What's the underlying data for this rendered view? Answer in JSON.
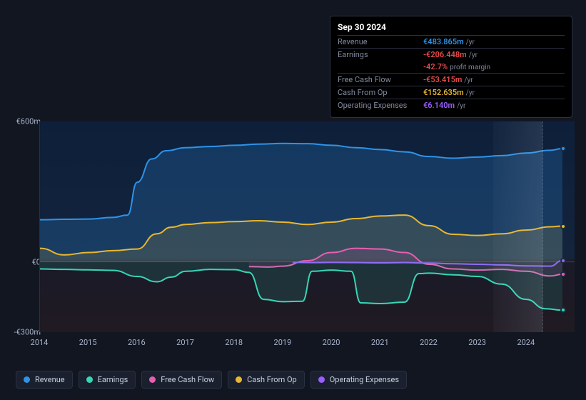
{
  "tooltip": {
    "date": "Sep 30 2024",
    "rows": [
      {
        "label": "Revenue",
        "value": "€483.865m",
        "unit": "/yr",
        "color": "#2e93e8"
      },
      {
        "label": "Earnings",
        "value": "-€206.448m",
        "unit": "/yr",
        "color": "#e84a4a",
        "sub": {
          "value": "-42.7%",
          "unit": "profit margin",
          "color": "#e84a4a"
        }
      },
      {
        "label": "Free Cash Flow",
        "value": "-€53.415m",
        "unit": "/yr",
        "color": "#e84a4a"
      },
      {
        "label": "Cash From Op",
        "value": "€152.635m",
        "unit": "/yr",
        "color": "#e8b732"
      },
      {
        "label": "Operating Expenses",
        "value": "€6.140m",
        "unit": "/yr",
        "color": "#9a5eff"
      }
    ]
  },
  "chart": {
    "background_color": "#111621",
    "y_axis": {
      "min": -300,
      "max": 600,
      "ticks": [
        {
          "v": 600,
          "label": "€600m"
        },
        {
          "v": 0,
          "label": "€0"
        },
        {
          "v": -300,
          "label": "-€300m"
        }
      ]
    },
    "x_axis": {
      "min": 2014,
      "max": 2025,
      "ticks": [
        2014,
        2015,
        2016,
        2017,
        2018,
        2019,
        2020,
        2021,
        2022,
        2023,
        2024
      ]
    },
    "series": [
      {
        "name": "Revenue",
        "color": "#2e93e8",
        "fill": "rgba(46,147,232,0.22)",
        "points": [
          [
            2014,
            180
          ],
          [
            2014.5,
            182
          ],
          [
            2015,
            183
          ],
          [
            2015.5,
            190
          ],
          [
            2015.8,
            200
          ],
          [
            2016,
            340
          ],
          [
            2016.3,
            440
          ],
          [
            2016.6,
            475
          ],
          [
            2017,
            488
          ],
          [
            2017.5,
            493
          ],
          [
            2018,
            498
          ],
          [
            2018.5,
            503
          ],
          [
            2019,
            506
          ],
          [
            2019.5,
            505
          ],
          [
            2020,
            498
          ],
          [
            2020.5,
            488
          ],
          [
            2021,
            480
          ],
          [
            2021.5,
            470
          ],
          [
            2022,
            450
          ],
          [
            2022.5,
            443
          ],
          [
            2023,
            448
          ],
          [
            2023.5,
            454
          ],
          [
            2024,
            465
          ],
          [
            2024.5,
            477
          ],
          [
            2024.75,
            484
          ]
        ],
        "marker_at": [
          2024.75,
          484
        ]
      },
      {
        "name": "Cash From Op",
        "color": "#e8b732",
        "fill": "rgba(232,183,50,0.14)",
        "points": [
          [
            2014,
            58
          ],
          [
            2014.5,
            30
          ],
          [
            2015,
            40
          ],
          [
            2015.5,
            48
          ],
          [
            2016,
            55
          ],
          [
            2016.4,
            120
          ],
          [
            2016.7,
            148
          ],
          [
            2017,
            160
          ],
          [
            2017.5,
            168
          ],
          [
            2018,
            172
          ],
          [
            2018.5,
            176
          ],
          [
            2019,
            170
          ],
          [
            2019.5,
            160
          ],
          [
            2020,
            170
          ],
          [
            2020.5,
            185
          ],
          [
            2021,
            196
          ],
          [
            2021.5,
            200
          ],
          [
            2022,
            155
          ],
          [
            2022.5,
            118
          ],
          [
            2023,
            113
          ],
          [
            2023.5,
            120
          ],
          [
            2024,
            136
          ],
          [
            2024.5,
            150
          ],
          [
            2024.75,
            153
          ]
        ],
        "marker_at": [
          2024.75,
          153
        ]
      },
      {
        "name": "Free Cash Flow",
        "color": "#e85eb1",
        "fill": "rgba(232,94,177,0.12)",
        "points": [
          [
            2018.3,
            -20
          ],
          [
            2018.7,
            -22
          ],
          [
            2019,
            -18
          ],
          [
            2019.5,
            5
          ],
          [
            2020,
            40
          ],
          [
            2020.5,
            58
          ],
          [
            2021,
            55
          ],
          [
            2021.5,
            40
          ],
          [
            2022,
            -10
          ],
          [
            2022.5,
            -30
          ],
          [
            2023,
            -35
          ],
          [
            2023.5,
            -32
          ],
          [
            2024,
            -40
          ],
          [
            2024.5,
            -60
          ],
          [
            2024.75,
            -53
          ]
        ],
        "marker_at": [
          2024.75,
          -53
        ]
      },
      {
        "name": "Operating Expenses",
        "color": "#9a5eff",
        "fill": "none",
        "points": [
          [
            2019.2,
            -2
          ],
          [
            2019.7,
            -3
          ],
          [
            2020,
            -2
          ],
          [
            2020.5,
            -3
          ],
          [
            2021,
            -4
          ],
          [
            2021.5,
            -3
          ],
          [
            2022,
            -5
          ],
          [
            2022.5,
            -8
          ],
          [
            2023,
            -10
          ],
          [
            2023.5,
            -13
          ],
          [
            2024,
            -17
          ],
          [
            2024.5,
            -18
          ],
          [
            2024.75,
            6
          ]
        ],
        "marker_at": [
          2024.75,
          6
        ]
      },
      {
        "name": "Earnings",
        "color": "#36d6b7",
        "fill": "rgba(54,214,183,0.13)",
        "points": [
          [
            2014,
            -30
          ],
          [
            2014.5,
            -32
          ],
          [
            2015,
            -34
          ],
          [
            2015.5,
            -36
          ],
          [
            2016,
            -62
          ],
          [
            2016.4,
            -85
          ],
          [
            2016.7,
            -65
          ],
          [
            2017,
            -40
          ],
          [
            2017.5,
            -32
          ],
          [
            2018,
            -33
          ],
          [
            2018.3,
            -45
          ],
          [
            2018.6,
            -160
          ],
          [
            2019,
            -170
          ],
          [
            2019.4,
            -168
          ],
          [
            2019.6,
            -40
          ],
          [
            2020,
            -35
          ],
          [
            2020.4,
            -40
          ],
          [
            2020.6,
            -175
          ],
          [
            2021,
            -178
          ],
          [
            2021.5,
            -172
          ],
          [
            2021.8,
            -50
          ],
          [
            2022,
            -48
          ],
          [
            2022.5,
            -55
          ],
          [
            2023,
            -62
          ],
          [
            2023.5,
            -95
          ],
          [
            2024,
            -160
          ],
          [
            2024.4,
            -200
          ],
          [
            2024.75,
            -206
          ]
        ],
        "marker_at": [
          2024.75,
          -206
        ]
      }
    ],
    "legend": [
      {
        "label": "Revenue",
        "color": "#2e93e8"
      },
      {
        "label": "Earnings",
        "color": "#36d6b7"
      },
      {
        "label": "Free Cash Flow",
        "color": "#e85eb1"
      },
      {
        "label": "Cash From Op",
        "color": "#e8b732"
      },
      {
        "label": "Operating Expenses",
        "color": "#9a5eff"
      }
    ]
  }
}
